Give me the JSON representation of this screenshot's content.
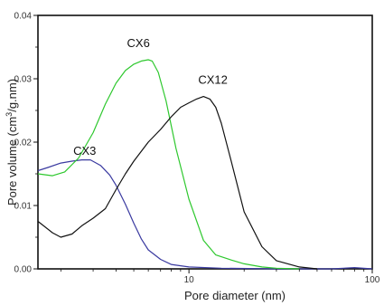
{
  "chart_data": {
    "type": "line",
    "title": "",
    "xlabel": "Pore diameter (nm)",
    "ylabel_main": "Pore volume (cm",
    "ylabel_sup": "3",
    "ylabel_rest": "/g.nm)",
    "x_scale": "log",
    "xlim": [
      1.5,
      100
    ],
    "ylim": [
      0,
      0.04
    ],
    "x_ticks": [
      {
        "value": 10,
        "label": "10"
      },
      {
        "value": 100,
        "label": "100"
      }
    ],
    "y_ticks": [
      {
        "value": 0,
        "label": "0.00"
      },
      {
        "value": 0.01,
        "label": "0.01"
      },
      {
        "value": 0.02,
        "label": "0.02"
      },
      {
        "value": 0.03,
        "label": "0.03"
      },
      {
        "value": 0.04,
        "label": "0.04"
      }
    ],
    "grid": false,
    "legend": "inline labels",
    "series": [
      {
        "name": "CX3",
        "color": "#3a3aa0",
        "x": [
          1.5,
          1.7,
          2.0,
          2.3,
          2.6,
          2.9,
          3.3,
          3.7,
          4.0,
          4.5,
          5.0,
          5.5,
          6.0,
          7.0,
          8.0,
          10.0,
          15.0,
          30.0,
          60.0,
          80.0,
          100.0
        ],
        "y": [
          0.0155,
          0.016,
          0.0167,
          0.017,
          0.0172,
          0.0172,
          0.0163,
          0.0148,
          0.0132,
          0.0102,
          0.0072,
          0.0047,
          0.003,
          0.0015,
          0.0007,
          0.0003,
          0.0001,
          0.0,
          0.0,
          0.0002,
          0.0
        ]
      },
      {
        "name": "CX6",
        "color": "#2ec82e",
        "x": [
          1.5,
          1.8,
          2.1,
          2.5,
          3.0,
          3.5,
          4.0,
          4.5,
          5.0,
          5.5,
          6.0,
          6.3,
          6.8,
          7.5,
          8.5,
          10.0,
          12.0,
          14.0,
          17.0,
          20.0,
          25.0,
          30.0,
          40.0
        ],
        "y": [
          0.015,
          0.0147,
          0.0153,
          0.0175,
          0.0215,
          0.026,
          0.0293,
          0.0313,
          0.0323,
          0.0328,
          0.033,
          0.0328,
          0.031,
          0.0265,
          0.019,
          0.011,
          0.0045,
          0.0022,
          0.0014,
          0.0008,
          0.0003,
          0.0001,
          0.0
        ]
      },
      {
        "name": "CX12",
        "color": "#111111",
        "x": [
          1.5,
          1.8,
          2.0,
          2.3,
          2.6,
          3.0,
          3.5,
          4.0,
          4.5,
          5.0,
          6.0,
          7.0,
          8.0,
          9.0,
          10.0,
          11.0,
          12.0,
          13.0,
          14.0,
          15.0,
          17.0,
          20.0,
          25.0,
          30.0,
          40.0,
          50.0
        ],
        "y": [
          0.0075,
          0.0057,
          0.005,
          0.0055,
          0.0068,
          0.008,
          0.0095,
          0.0125,
          0.015,
          0.017,
          0.02,
          0.022,
          0.024,
          0.0255,
          0.0262,
          0.0268,
          0.0272,
          0.0268,
          0.0255,
          0.023,
          0.017,
          0.009,
          0.0035,
          0.0013,
          0.0003,
          0.0
        ]
      }
    ],
    "annotations": [
      {
        "text": "CX3",
        "x": 2.7,
        "y": 0.018
      },
      {
        "text": "CX6",
        "x": 5.3,
        "y": 0.035
      },
      {
        "text": "CX12",
        "x": 13.5,
        "y": 0.0292
      }
    ]
  }
}
